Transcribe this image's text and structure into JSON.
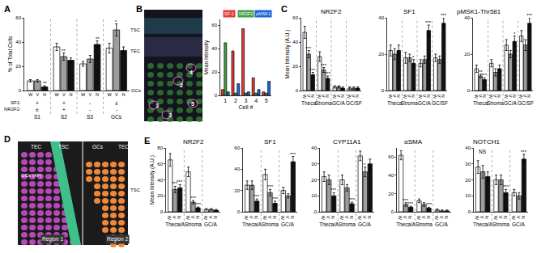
{
  "chart_data": [
    {
      "label": "A",
      "type": "bar",
      "y_label": "% of Total Cells",
      "categories": [
        "S1",
        "S2",
        "S3",
        "GCs"
      ],
      "series": [
        {
          "name": "W",
          "color": "#ffffff",
          "values": [
            8,
            36,
            22,
            35
          ],
          "errors": [
            1,
            3,
            2,
            4
          ]
        },
        {
          "name": "V",
          "color": "#9e9e9e",
          "values": [
            8,
            28,
            26,
            50
          ],
          "errors": [
            1,
            3,
            3,
            5
          ],
          "significance": [
            null,
            "**",
            null,
            "*"
          ]
        },
        {
          "name": "N",
          "color": "#111111",
          "values": [
            3,
            25,
            38,
            33
          ],
          "errors": [
            1,
            2,
            3,
            3
          ],
          "significance": [
            "**",
            null,
            "**",
            null
          ]
        }
      ],
      "ylim": [
        0,
        60
      ],
      "yticks": [
        0,
        20,
        40,
        60
      ],
      "rows": [
        {
          "name": "SF1:",
          "values": [
            "+",
            "+",
            "-",
            "±"
          ]
        },
        {
          "name": "NR2F2:",
          "values": [
            "±",
            "+",
            "-",
            "-"
          ]
        }
      ]
    },
    {
      "type": "bar",
      "y_label": "Mean Intensity",
      "x_label": "Cell #",
      "categories": [
        "1",
        "2",
        "3",
        "4",
        "5"
      ],
      "series": [
        {
          "name": "SF-1",
          "color": "#e53935",
          "values": [
            5,
            38,
            57,
            15,
            3
          ]
        },
        {
          "name": "NR2F2",
          "color": "#43a047",
          "values": [
            45,
            2,
            2,
            2,
            2
          ]
        },
        {
          "name": "pMSK1",
          "color": "#1e63d6",
          "values": [
            3,
            10,
            3,
            5,
            12
          ]
        }
      ],
      "ylim": [
        0,
        65
      ],
      "yticks": [
        0,
        20,
        40,
        60
      ]
    },
    {
      "label": "C",
      "type": "bar",
      "title": "NR2F2",
      "y_label": "Mean Intensity (A.U.)",
      "categories": [
        "Theca",
        "Stroma",
        "GC/A",
        "GC/SF"
      ],
      "series": [
        {
          "name": "W",
          "color": "#ffffff",
          "values": [
            48,
            28,
            3,
            2
          ],
          "errors": [
            5,
            4,
            1,
            1
          ]
        },
        {
          "name": "V",
          "color": "#9e9e9e",
          "values": [
            30,
            17,
            3,
            2
          ],
          "errors": [
            3,
            2,
            1,
            1
          ],
          "significance": [
            "***",
            "***",
            null,
            null
          ]
        },
        {
          "name": "N",
          "color": "#111111",
          "values": [
            13,
            10,
            2,
            2
          ],
          "errors": [
            2,
            2,
            1,
            1
          ],
          "significance": [
            "***",
            "***",
            null,
            null
          ]
        }
      ],
      "ylim": [
        0,
        60
      ],
      "yticks": [
        0,
        20,
        40,
        60
      ]
    },
    {
      "type": "bar",
      "title": "SF1",
      "categories": [
        "Theca",
        "Stroma",
        "GC/A",
        "GC/SF"
      ],
      "series": [
        {
          "name": "W",
          "color": "#ffffff",
          "values": [
            22,
            18,
            15,
            18
          ],
          "errors": [
            3,
            3,
            2,
            2
          ]
        },
        {
          "name": "V",
          "color": "#9e9e9e",
          "values": [
            20,
            18,
            17,
            17
          ],
          "errors": [
            3,
            2,
            2,
            2
          ]
        },
        {
          "name": "N",
          "color": "#111111",
          "values": [
            22,
            15,
            33,
            37
          ],
          "errors": [
            3,
            2,
            3,
            3
          ],
          "significance": [
            null,
            "*",
            "***",
            "***"
          ]
        }
      ],
      "ylim": [
        0,
        40
      ],
      "yticks": [
        0,
        20,
        40
      ]
    },
    {
      "type": "bar",
      "title": "pMSK1-Thr581",
      "categories": [
        "Theca",
        "Stroma",
        "GC/A",
        "GC/SF"
      ],
      "series": [
        {
          "name": "W",
          "color": "#ffffff",
          "values": [
            12,
            15,
            25,
            30
          ],
          "errors": [
            2,
            2,
            3,
            3
          ]
        },
        {
          "name": "V",
          "color": "#9e9e9e",
          "values": [
            8,
            10,
            20,
            25
          ],
          "errors": [
            1,
            2,
            2,
            3
          ],
          "significance": [
            "**",
            null,
            null,
            null
          ]
        },
        {
          "name": "N",
          "color": "#111111",
          "values": [
            6,
            12,
            27,
            37
          ],
          "errors": [
            1,
            2,
            3,
            3
          ],
          "significance": [
            "***",
            null,
            "*",
            "***"
          ]
        }
      ],
      "ylim": [
        0,
        40
      ],
      "yticks": [
        0,
        20,
        40
      ]
    },
    {
      "label": "E",
      "type": "bar",
      "title": "NR2F2",
      "y_label": "Mean Intensity (A.U.)",
      "categories": [
        "Theca/A",
        "Stroma",
        "GC/A"
      ],
      "series": [
        {
          "name": "W",
          "color": "#ffffff",
          "values": [
            65,
            50,
            3
          ],
          "errors": [
            8,
            6,
            1
          ]
        },
        {
          "name": "V",
          "color": "#9e9e9e",
          "values": [
            28,
            12,
            3
          ],
          "errors": [
            4,
            2,
            1
          ],
          "significance": [
            "***",
            "***",
            null
          ]
        },
        {
          "name": "N",
          "color": "#111111",
          "values": [
            30,
            5,
            2
          ],
          "errors": [
            4,
            1,
            1
          ],
          "significance": [
            "***",
            "***",
            null
          ]
        }
      ],
      "ylim": [
        0,
        80
      ],
      "yticks": [
        0,
        20,
        40,
        60,
        80
      ]
    },
    {
      "type": "bar",
      "title": "SF1",
      "categories": [
        "Theca/A",
        "Stroma",
        "GC/A"
      ],
      "series": [
        {
          "name": "W",
          "color": "#ffffff",
          "values": [
            25,
            35,
            20
          ],
          "errors": [
            4,
            5,
            3
          ]
        },
        {
          "name": "V",
          "color": "#9e9e9e",
          "values": [
            25,
            18,
            15
          ],
          "errors": [
            4,
            3,
            2
          ],
          "significance": [
            null,
            "***",
            null
          ]
        },
        {
          "name": "N",
          "color": "#111111",
          "values": [
            10,
            8,
            47
          ],
          "errors": [
            2,
            2,
            5
          ],
          "significance": [
            "***",
            "***",
            "***"
          ]
        }
      ],
      "ylim": [
        0,
        60
      ],
      "yticks": [
        0,
        20,
        40,
        60
      ]
    },
    {
      "type": "bar",
      "title": "CYP11A1",
      "categories": [
        "Theca/A",
        "Stroma",
        "GC/A"
      ],
      "series": [
        {
          "name": "W",
          "color": "#ffffff",
          "values": [
            22,
            20,
            35
          ],
          "errors": [
            3,
            3,
            3
          ]
        },
        {
          "name": "V",
          "color": "#9e9e9e",
          "values": [
            20,
            15,
            25
          ],
          "errors": [
            3,
            2,
            3
          ],
          "significance": [
            null,
            null,
            "*"
          ]
        },
        {
          "name": "N",
          "color": "#111111",
          "values": [
            10,
            5,
            30
          ],
          "errors": [
            2,
            1,
            3
          ],
          "significance": [
            "***",
            "***",
            null
          ]
        }
      ],
      "ylim": [
        0,
        40
      ],
      "yticks": [
        0,
        10,
        20,
        30,
        40
      ]
    },
    {
      "type": "bar",
      "title": "αSMA",
      "categories": [
        "Theca/A",
        "Stroma",
        "GC/A"
      ],
      "series": [
        {
          "name": "W",
          "color": "#ffffff",
          "values": [
            62,
            12,
            2
          ],
          "errors": [
            5,
            2,
            1
          ]
        },
        {
          "name": "V",
          "color": "#9e9e9e",
          "values": [
            8,
            8,
            1
          ],
          "errors": [
            2,
            2,
            1
          ],
          "significance": [
            "***",
            null,
            null
          ]
        },
        {
          "name": "N",
          "color": "#111111",
          "values": [
            5,
            4,
            1
          ],
          "errors": [
            1,
            1,
            1
          ],
          "significance": [
            "***",
            "***",
            null
          ]
        }
      ],
      "ylim": [
        0,
        70
      ],
      "yticks": [
        0,
        20,
        40,
        60
      ]
    },
    {
      "type": "bar",
      "title": "NOTCH1",
      "categories": [
        "Theca/A",
        "Stroma",
        "GC/A"
      ],
      "series": [
        {
          "name": "W",
          "color": "#ffffff",
          "values": [
            28,
            20,
            12
          ],
          "errors": [
            4,
            3,
            2
          ]
        },
        {
          "name": "V",
          "color": "#9e9e9e",
          "values": [
            25,
            20,
            10
          ],
          "errors": [
            4,
            3,
            2
          ]
        },
        {
          "name": "N",
          "color": "#111111",
          "values": [
            22,
            12,
            33
          ],
          "errors": [
            3,
            2,
            3
          ],
          "significance": [
            null,
            "***",
            "***"
          ]
        }
      ],
      "ylim": [
        0,
        40
      ],
      "yticks": [
        0,
        10,
        20,
        30,
        40
      ],
      "notes": [
        {
          "text": "NS",
          "category": "Theca/A"
        }
      ]
    }
  ],
  "micrographs": {
    "B": {
      "label": "B",
      "layers": [
        "TSC",
        "TEC",
        "GCs"
      ],
      "cells": [
        "1",
        "2",
        "3",
        "4",
        "5"
      ]
    },
    "D": {
      "label": "D",
      "top_labels": [
        "TEC",
        "TSC",
        "GCs",
        "TEC"
      ],
      "side_labels": [
        "GCs (AF)",
        "TSC"
      ],
      "regions": [
        "Region 1",
        "Region 2"
      ]
    }
  }
}
